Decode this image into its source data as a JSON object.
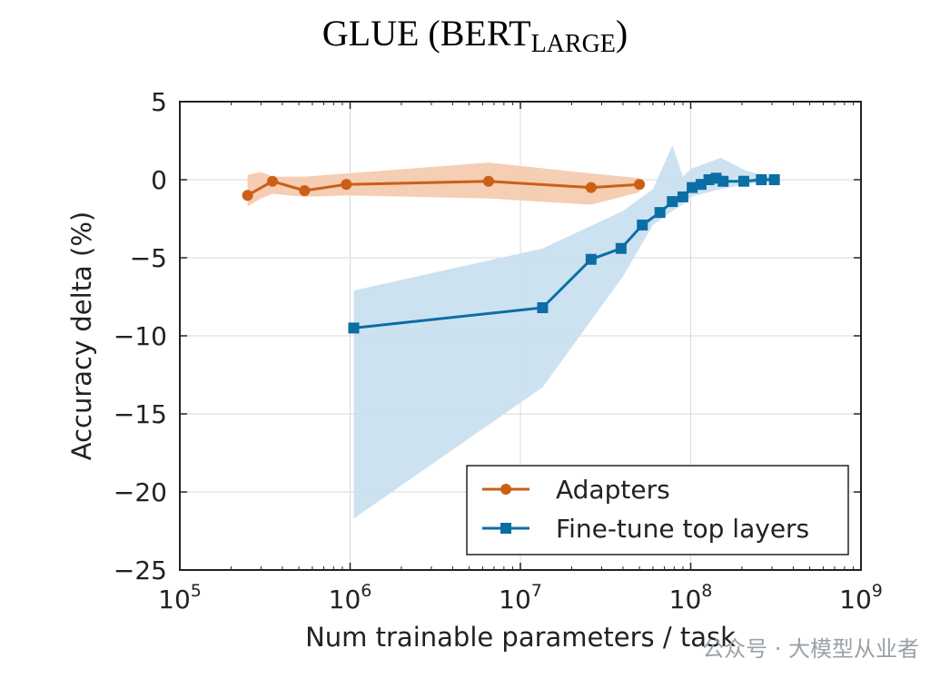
{
  "chart_data": {
    "type": "line",
    "title": {
      "main": "GLUE (BERT",
      "subscript": "LARGE",
      "close": ")"
    },
    "xlabel": "Num trainable parameters / task",
    "ylabel": "Accuracy delta (%)",
    "x_scale": "log",
    "xlim": [
      100000,
      1000000000
    ],
    "ylim": [
      -25,
      5
    ],
    "x_tick_labels": [
      {
        "base": "10",
        "exp": "5"
      },
      {
        "base": "10",
        "exp": "6"
      },
      {
        "base": "10",
        "exp": "7"
      },
      {
        "base": "10",
        "exp": "8"
      },
      {
        "base": "10",
        "exp": "9"
      }
    ],
    "y_ticks": [
      5,
      0,
      -5,
      -10,
      -15,
      -20,
      -25
    ],
    "y_tick_labels": [
      "5",
      "0",
      "−5",
      "−10",
      "−15",
      "−20",
      "−25"
    ],
    "grid": true,
    "legend_position": "lower-right",
    "series": [
      {
        "name": "Adapters",
        "color": "#cc5f16",
        "band_color": "#f4c9ab",
        "marker": "circle",
        "x": [
          250000,
          350000,
          540000,
          950000,
          6500000,
          26000000,
          50000000
        ],
        "y": [
          -1.0,
          -0.1,
          -0.7,
          -0.3,
          -0.1,
          -0.5,
          -0.3
        ],
        "band_x": [
          250000,
          300000,
          350000,
          540000,
          950000,
          6500000,
          26000000,
          50000000
        ],
        "band_upper": [
          0.3,
          0.5,
          0.2,
          0.2,
          0.4,
          1.1,
          0.4,
          0.1
        ],
        "band_lower": [
          -1.7,
          -1.2,
          -0.9,
          -1.1,
          -1.0,
          -1.2,
          -1.6,
          -0.8
        ]
      },
      {
        "name": "Fine-tune top layers",
        "color": "#0b6ea5",
        "band_color": "#c8dff0",
        "marker": "square",
        "x": [
          1050000,
          13500000,
          26000000,
          39000000,
          52000000,
          66000000,
          78000000,
          90000000,
          102000000,
          115000000,
          128000000,
          141000000,
          155000000,
          205000000,
          260000000,
          310000000
        ],
        "y": [
          -9.5,
          -8.2,
          -5.1,
          -4.4,
          -2.9,
          -2.1,
          -1.4,
          -1.1,
          -0.5,
          -0.3,
          0.0,
          0.1,
          -0.1,
          -0.1,
          0.0,
          0.0
        ],
        "band_x": [
          1050000,
          13500000,
          40000000,
          60000000,
          78000000,
          90000000,
          100000000,
          150000000,
          210000000,
          310000000
        ],
        "band_upper": [
          -7.1,
          -4.4,
          -2.0,
          -0.6,
          2.2,
          0.2,
          0.7,
          1.4,
          0.6,
          0.1
        ],
        "band_lower": [
          -21.7,
          -13.3,
          -6.2,
          -2.9,
          -2.0,
          -1.6,
          -1.1,
          -0.6,
          -0.3,
          -0.1
        ]
      }
    ]
  },
  "watermark": {
    "text": "公众号 · 大模型从业者"
  }
}
